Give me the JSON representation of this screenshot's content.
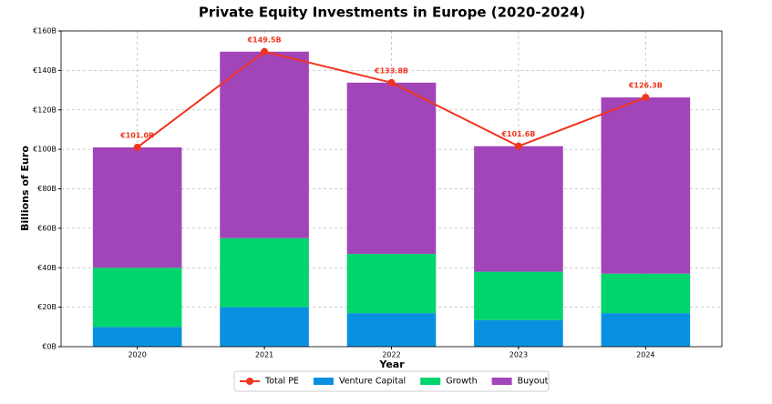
{
  "chart_data": {
    "type": "bar",
    "stacked": true,
    "title": "Private Equity Investments in Europe (2020-2024)",
    "xlabel": "Year",
    "ylabel": "Billions of Euro",
    "categories": [
      "2020",
      "2021",
      "2022",
      "2023",
      "2024"
    ],
    "series": [
      {
        "name": "Total PE",
        "type": "line",
        "color": "#f0341f",
        "values": [
          101.0,
          149.5,
          133.8,
          101.6,
          126.3
        ],
        "value_labels": [
          "€101.0B",
          "€149.5B",
          "€133.8B",
          "€101.6B",
          "€126.3B"
        ]
      },
      {
        "name": "Venture Capital",
        "type": "bar",
        "color": "#0a90e0",
        "values": [
          10,
          20,
          17,
          13.5,
          17
        ]
      },
      {
        "name": "Growth",
        "type": "bar",
        "color": "#00d46c",
        "values": [
          30,
          35,
          30,
          24.5,
          20
        ]
      },
      {
        "name": "Buyout",
        "type": "bar",
        "color": "#a245b8",
        "values": [
          61,
          94.5,
          86.8,
          63.6,
          89.3
        ]
      }
    ],
    "ylim": [
      0,
      160
    ],
    "yticks": [
      {
        "value": 0,
        "label": "€0B"
      },
      {
        "value": 20,
        "label": "€20B"
      },
      {
        "value": 40,
        "label": "€40B"
      },
      {
        "value": 60,
        "label": "€60B"
      },
      {
        "value": 80,
        "label": "€80B"
      },
      {
        "value": 100,
        "label": "€100B"
      },
      {
        "value": 120,
        "label": "€120B"
      },
      {
        "value": 140,
        "label": "€140B"
      },
      {
        "value": 160,
        "label": "€160B"
      }
    ],
    "grid": true,
    "legend": "bottom"
  }
}
